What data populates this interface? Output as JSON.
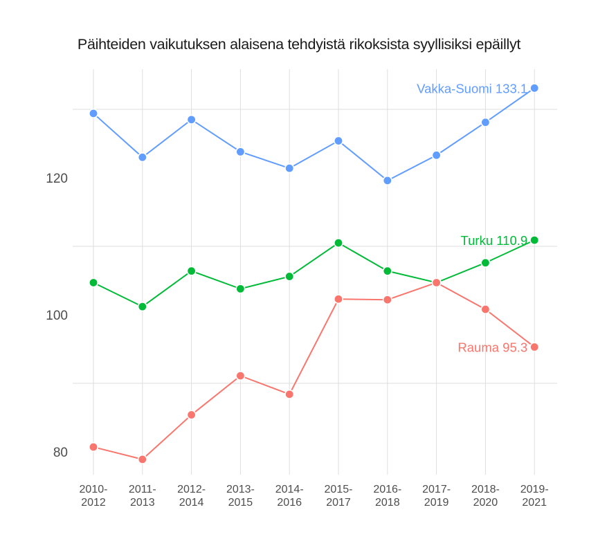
{
  "chart_data": {
    "type": "line",
    "title": "Päihteiden vaikutuksen alaisena tehdyistä rikoksista syyllisiksi epäillyt",
    "xlabel": "",
    "ylabel": "",
    "categories": [
      "2010-2012",
      "2011-2013",
      "2012-2014",
      "2013-2015",
      "2014-2016",
      "2015-2017",
      "2016-2018",
      "2017-2019",
      "2018-2020",
      "2019-2021"
    ],
    "category_lines": [
      [
        "2010-",
        "2012"
      ],
      [
        "2011-",
        "2013"
      ],
      [
        "2012-",
        "2014"
      ],
      [
        "2013-",
        "2015"
      ],
      [
        "2014-",
        "2016"
      ],
      [
        "2015-",
        "2017"
      ],
      [
        "2016-",
        "2018"
      ],
      [
        "2017-",
        "2019"
      ],
      [
        "2018-",
        "2020"
      ],
      [
        "2019-",
        "2021"
      ]
    ],
    "ylim": [
      76.5,
      135
    ],
    "yticks": [
      80,
      100,
      120
    ],
    "minor_gridlines": [
      90,
      110,
      130
    ],
    "grid": true,
    "legend_position": "none (direct end labels)",
    "series": [
      {
        "name": "Vakka-Suomi",
        "color": "#619CFF",
        "end_label": "Vakka-Suomi 133.1",
        "values": [
          129.4,
          123.0,
          128.5,
          123.8,
          121.4,
          125.4,
          119.6,
          123.3,
          128.1,
          133.1
        ]
      },
      {
        "name": "Turku",
        "color": "#00BA38",
        "end_label": "Turku 110.9",
        "values": [
          104.7,
          101.2,
          106.4,
          103.8,
          105.6,
          110.5,
          106.4,
          104.7,
          107.6,
          110.9
        ]
      },
      {
        "name": "Rauma",
        "color": "#F8766D",
        "end_label": "Rauma 95.3",
        "values": [
          80.7,
          78.9,
          85.4,
          91.1,
          88.4,
          102.3,
          102.2,
          104.7,
          100.8,
          95.3
        ]
      }
    ]
  }
}
